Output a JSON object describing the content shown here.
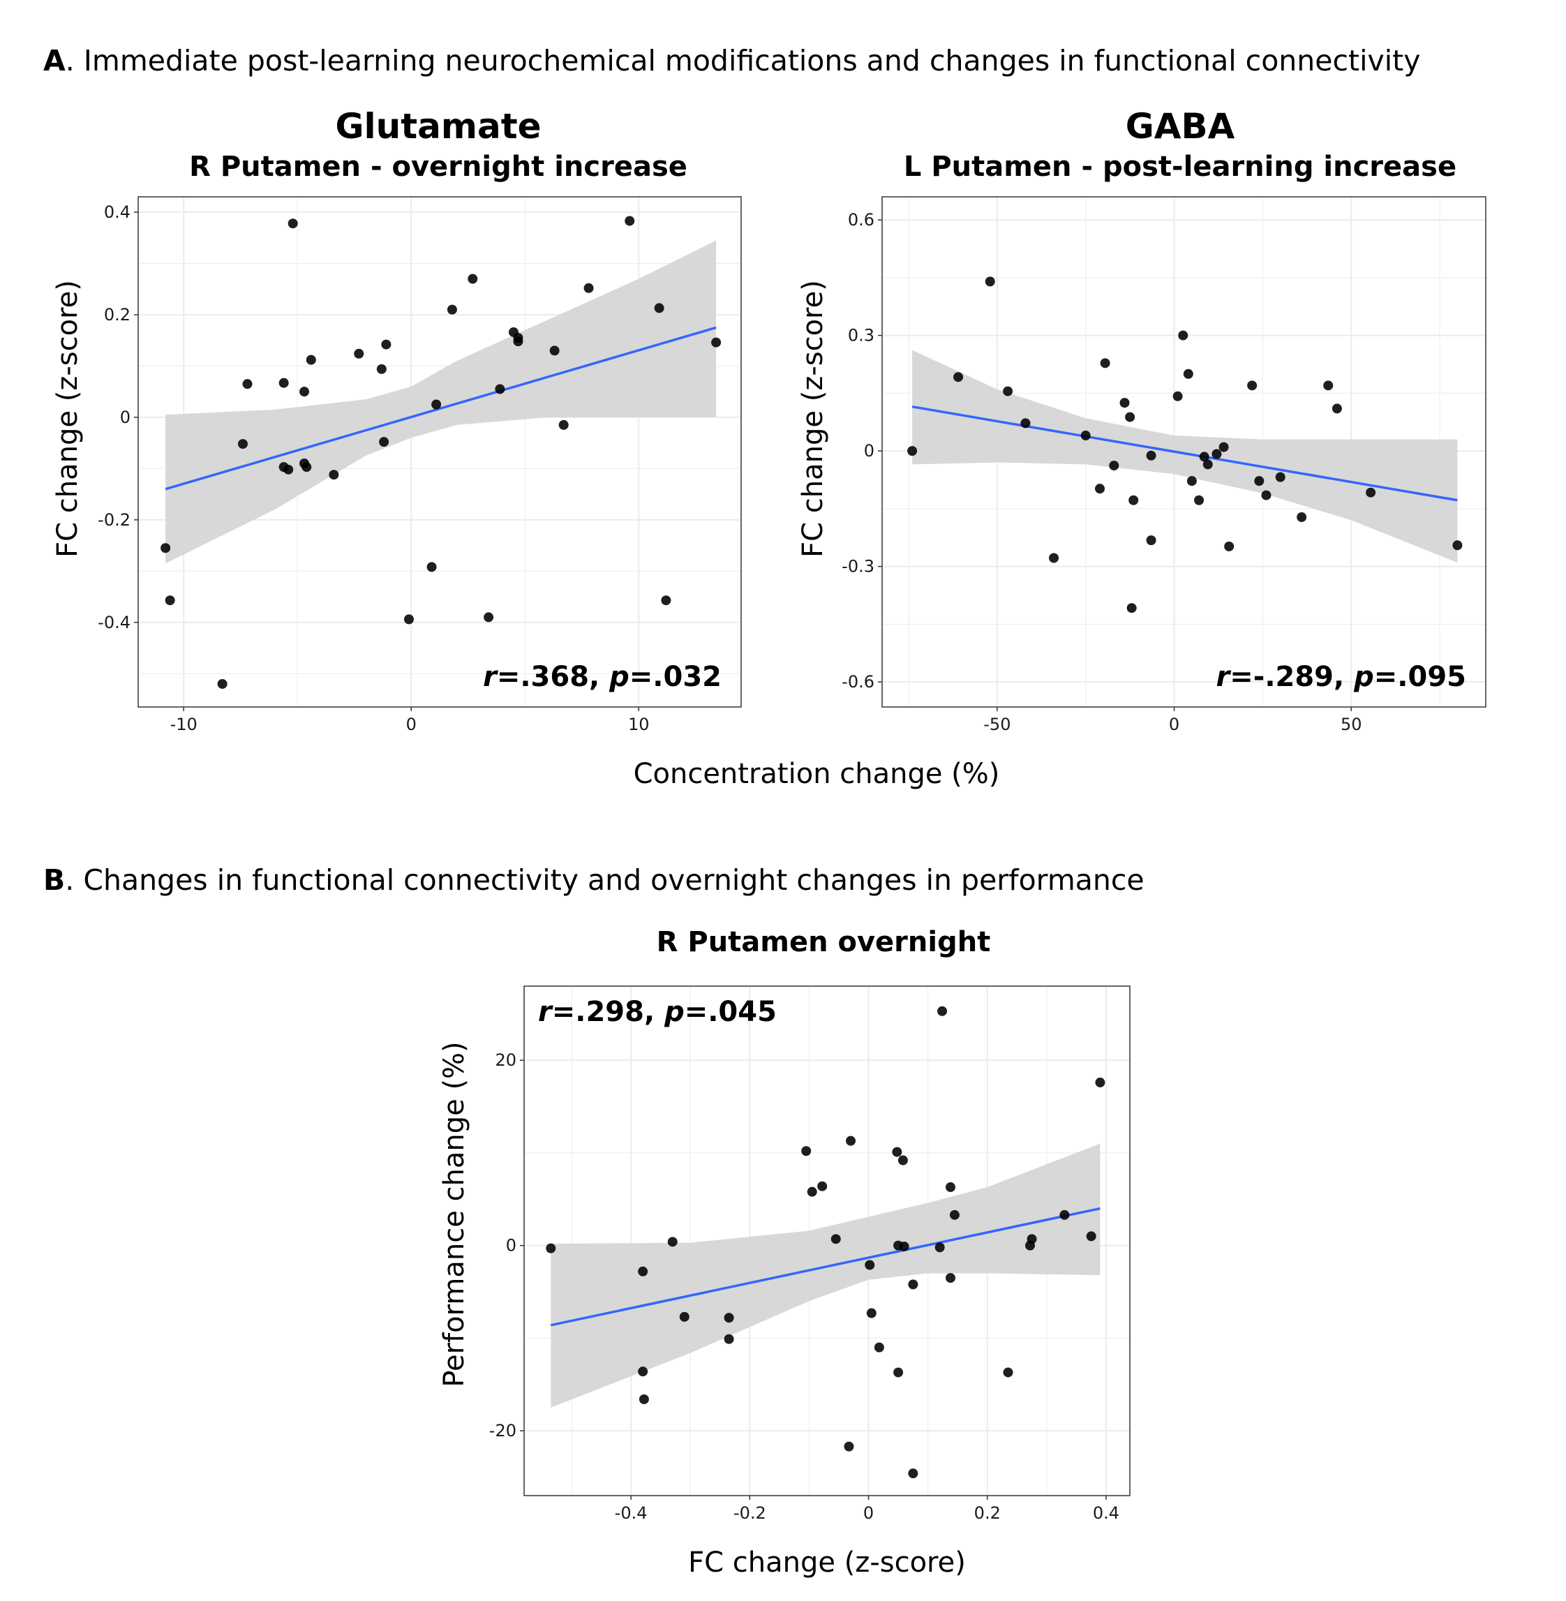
{
  "panel_a": {
    "letter": "A",
    "text": ". Immediate post-learning neurochemical modifications and changes in functional connectivity"
  },
  "panel_b": {
    "letter": "B",
    "text": ". Changes in functional connectivity and overnight changes in performance"
  },
  "shared_xlabel_a": "Concentration change (%)",
  "colors": {
    "point": "#000000",
    "fit_line": "#3366ff",
    "ci_band": "#d6d6d6",
    "grid": "#ebebeb",
    "frame": "#333333"
  },
  "chart_data": [
    {
      "id": "glutamate",
      "type": "scatter",
      "title": "Glutamate",
      "subtitle": "R Putamen - overnight increase",
      "xlabel": "",
      "ylabel": "FC change (z-score)",
      "xlim": [
        -12,
        14.5
      ],
      "ylim": [
        -0.565,
        0.43
      ],
      "xticks": [
        -10,
        0,
        10
      ],
      "xtick_labels": [
        "-10",
        "0",
        "10"
      ],
      "xminor": [
        -5,
        5
      ],
      "yticks": [
        -0.4,
        -0.2,
        0,
        0.2,
        0.4
      ],
      "ytick_labels": [
        "-0.4",
        "-0.2",
        "0",
        "0.2",
        "0.4"
      ],
      "yminor": [
        -0.5,
        -0.3,
        -0.1,
        0.1,
        0.3
      ],
      "stat": {
        "r_letter": "r",
        "r_value": "=.368, ",
        "p_letter": "p",
        "p_value": "=.032",
        "position": "bottom-right"
      },
      "fit": {
        "x": [
          -10.8,
          13.4
        ],
        "y": [
          -0.14,
          0.175
        ]
      },
      "ci": {
        "x": [
          -10.8,
          -6,
          -2,
          0,
          2,
          6,
          10,
          13.4
        ],
        "upper": [
          0.005,
          0.015,
          0.035,
          0.06,
          0.11,
          0.19,
          0.27,
          0.345
        ],
        "lower": [
          -0.285,
          -0.18,
          -0.075,
          -0.04,
          -0.015,
          0.0,
          0.0,
          0.0
        ]
      },
      "points": [
        [
          -10.8,
          -0.255
        ],
        [
          -10.6,
          -0.357
        ],
        [
          -8.3,
          -0.52
        ],
        [
          -7.4,
          -0.052
        ],
        [
          -7.2,
          0.065
        ],
        [
          -5.6,
          0.067
        ],
        [
          -5.6,
          -0.097
        ],
        [
          -5.4,
          -0.102
        ],
        [
          -5.2,
          0.378
        ],
        [
          -4.7,
          0.05
        ],
        [
          -4.7,
          -0.09
        ],
        [
          -4.6,
          -0.097
        ],
        [
          -4.4,
          0.112
        ],
        [
          -3.4,
          -0.112
        ],
        [
          -2.3,
          0.124
        ],
        [
          -1.3,
          0.094
        ],
        [
          -1.2,
          -0.048
        ],
        [
          -1.1,
          0.142
        ],
        [
          -0.1,
          -0.394
        ],
        [
          0.9,
          -0.292
        ],
        [
          1.1,
          0.025
        ],
        [
          1.8,
          0.21
        ],
        [
          2.7,
          0.27
        ],
        [
          3.4,
          -0.39
        ],
        [
          3.9,
          0.055
        ],
        [
          4.5,
          0.166
        ],
        [
          4.7,
          0.155
        ],
        [
          4.7,
          0.148
        ],
        [
          6.3,
          0.13
        ],
        [
          6.7,
          -0.015
        ],
        [
          7.8,
          0.252
        ],
        [
          9.6,
          0.383
        ],
        [
          10.9,
          0.213
        ],
        [
          11.2,
          -0.357
        ],
        [
          13.4,
          0.146
        ]
      ]
    },
    {
      "id": "gaba",
      "type": "scatter",
      "title": "GABA",
      "subtitle": "L Putamen - post-learning increase",
      "xlabel": "",
      "ylabel": "FC change (z-score)",
      "xlim": [
        -82.5,
        88
      ],
      "ylim": [
        -0.665,
        0.66
      ],
      "xticks": [
        -50,
        0,
        50
      ],
      "xtick_labels": [
        "-50",
        "0",
        "50"
      ],
      "xminor": [
        -75,
        -25,
        25,
        75
      ],
      "yticks": [
        -0.6,
        -0.3,
        0,
        0.3,
        0.6
      ],
      "ytick_labels": [
        "-0.6",
        "-0.3",
        "0",
        "0.3",
        "0.6"
      ],
      "yminor": [
        -0.45,
        -0.15,
        0.15,
        0.45
      ],
      "stat": {
        "r_letter": "r",
        "r_value": "=-.289, ",
        "p_letter": "p",
        "p_value": "=.095",
        "position": "bottom-right"
      },
      "fit": {
        "x": [
          -74,
          80
        ],
        "y": [
          0.115,
          -0.128
        ]
      },
      "ci": {
        "x": [
          -74,
          -50,
          -25,
          0,
          25,
          50,
          80
        ],
        "upper": [
          0.262,
          0.16,
          0.085,
          0.04,
          0.03,
          0.03,
          0.03
        ],
        "lower": [
          -0.035,
          -0.03,
          -0.035,
          -0.06,
          -0.11,
          -0.18,
          -0.29
        ]
      },
      "points": [
        [
          -74,
          0.0
        ],
        [
          -61,
          0.192
        ],
        [
          -52,
          0.44
        ],
        [
          -47,
          0.155
        ],
        [
          -42,
          0.072
        ],
        [
          -34,
          -0.278
        ],
        [
          -25,
          0.04
        ],
        [
          -21,
          -0.098
        ],
        [
          -19.5,
          0.228
        ],
        [
          -17,
          -0.038
        ],
        [
          -14,
          0.125
        ],
        [
          -12.5,
          0.088
        ],
        [
          -12,
          -0.408
        ],
        [
          -11.5,
          -0.128
        ],
        [
          -6.5,
          -0.232
        ],
        [
          -6.5,
          -0.012
        ],
        [
          1,
          0.142
        ],
        [
          2.5,
          0.3
        ],
        [
          4,
          0.2
        ],
        [
          5,
          -0.078
        ],
        [
          7,
          -0.128
        ],
        [
          8.5,
          -0.015
        ],
        [
          9.5,
          -0.035
        ],
        [
          12,
          -0.008
        ],
        [
          14,
          0.01
        ],
        [
          15.5,
          -0.248
        ],
        [
          22,
          0.17
        ],
        [
          24,
          -0.078
        ],
        [
          26,
          -0.115
        ],
        [
          30,
          -0.068
        ],
        [
          36,
          -0.172
        ],
        [
          43.5,
          0.17
        ],
        [
          46,
          0.11
        ],
        [
          55.5,
          -0.108
        ],
        [
          80,
          -0.245
        ]
      ]
    },
    {
      "id": "performance",
      "type": "scatter",
      "title": "R Putamen overnight",
      "subtitle": "",
      "xlabel": "FC change (z-score)",
      "ylabel": "Performance change (%)",
      "xlim": [
        -0.58,
        0.44
      ],
      "ylim": [
        -27,
        28
      ],
      "xticks": [
        -0.4,
        -0.2,
        0,
        0.2,
        0.4
      ],
      "xtick_labels": [
        "-0.4",
        "-0.2",
        "0",
        "0.2",
        "0.4"
      ],
      "xminor": [
        -0.5,
        -0.3,
        -0.1,
        0.1,
        0.3
      ],
      "yticks": [
        -20,
        0,
        20
      ],
      "ytick_labels": [
        "-20",
        "0",
        "20"
      ],
      "yminor": [
        -10,
        10
      ],
      "stat": {
        "r_letter": "r",
        "r_value": "=.298, ",
        "p_letter": "p",
        "p_value": "=.045",
        "position": "top-left"
      },
      "fit": {
        "x": [
          -0.535,
          0.39
        ],
        "y": [
          -8.6,
          4.0
        ]
      },
      "ci": {
        "x": [
          -0.535,
          -0.3,
          -0.1,
          0.0,
          0.1,
          0.2,
          0.39
        ],
        "upper": [
          0.2,
          0.3,
          1.6,
          3.1,
          4.6,
          6.3,
          11.0
        ],
        "lower": [
          -17.5,
          -11.6,
          -6.0,
          -3.7,
          -3.0,
          -3.0,
          -3.2
        ]
      },
      "points": [
        [
          -0.535,
          -0.3
        ],
        [
          -0.38,
          -2.8
        ],
        [
          -0.38,
          -13.6
        ],
        [
          -0.378,
          -16.6
        ],
        [
          -0.33,
          0.4
        ],
        [
          -0.31,
          -7.7
        ],
        [
          -0.235,
          -7.8
        ],
        [
          -0.235,
          -10.1
        ],
        [
          -0.105,
          10.2
        ],
        [
          -0.095,
          5.8
        ],
        [
          -0.078,
          6.4
        ],
        [
          -0.055,
          0.7
        ],
        [
          -0.03,
          11.3
        ],
        [
          -0.033,
          -21.7
        ],
        [
          0.002,
          -2.1
        ],
        [
          0.005,
          -7.3
        ],
        [
          0.018,
          -11.0
        ],
        [
          0.048,
          10.1
        ],
        [
          0.05,
          0.0
        ],
        [
          0.05,
          -13.7
        ],
        [
          0.058,
          9.2
        ],
        [
          0.06,
          -0.1
        ],
        [
          0.075,
          -24.6
        ],
        [
          0.075,
          -4.2
        ],
        [
          0.12,
          -0.2
        ],
        [
          0.124,
          25.3
        ],
        [
          0.138,
          6.3
        ],
        [
          0.138,
          -3.5
        ],
        [
          0.145,
          3.3
        ],
        [
          0.235,
          -13.7
        ],
        [
          0.272,
          0.0
        ],
        [
          0.275,
          0.7
        ],
        [
          0.33,
          3.3
        ],
        [
          0.375,
          1.0
        ],
        [
          0.39,
          17.6
        ]
      ]
    }
  ]
}
